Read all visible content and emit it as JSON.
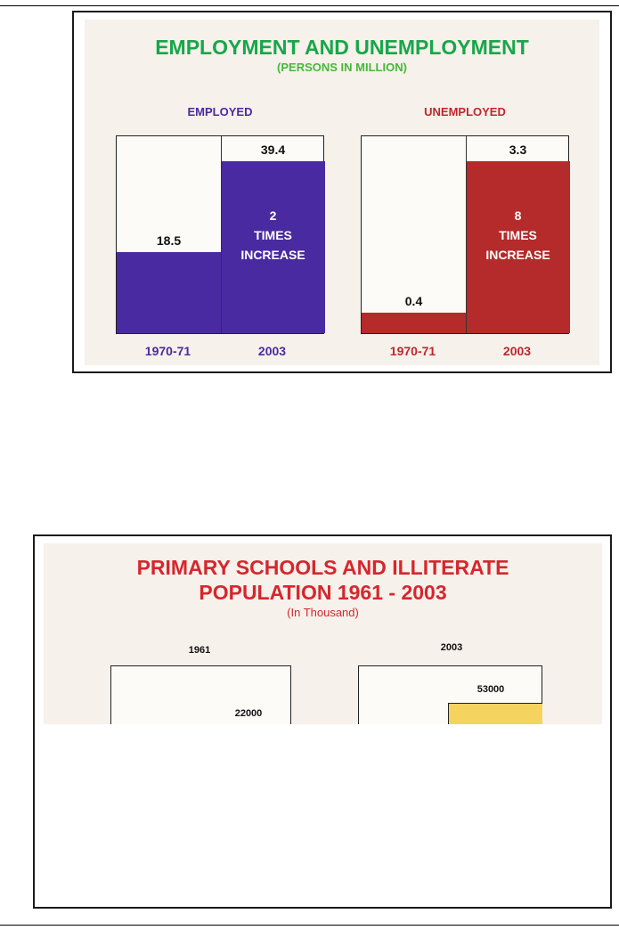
{
  "colors": {
    "title_green": "#18a64a",
    "subtitle_green": "#46b83c",
    "employed": "#4a2aa0",
    "unemployed": "#b52a2a",
    "schools_title": "#d6262e",
    "schools_bar": "#f4d35e"
  },
  "chart_data": [
    {
      "type": "bar",
      "title": "EMPLOYMENT AND UNEMPLOYMENT",
      "subtitle": "(PERSONS IN MILLION)",
      "groups": [
        {
          "name": "EMPLOYED",
          "categories": [
            "1970-71",
            "2003"
          ],
          "values": [
            18.5,
            39.4
          ],
          "value_labels": [
            "18.5",
            "39.4"
          ],
          "annotation": [
            "2",
            "TIMES",
            "INCREASE"
          ]
        },
        {
          "name": "UNEMPLOYED",
          "categories": [
            "1970-71",
            "2003"
          ],
          "values": [
            0.4,
            3.3
          ],
          "value_labels": [
            "0.4",
            "3.3"
          ],
          "annotation": [
            "8",
            "TIMES",
            "INCREASE"
          ]
        }
      ]
    },
    {
      "type": "bar",
      "title_lines": [
        "PRIMARY SCHOOLS AND ILLITERATE",
        "POPULATION 1961 - 2003"
      ],
      "subtitle": "(In Thousand)",
      "groups": [
        {
          "name": "1961",
          "value_labels": [
            "22000"
          ]
        },
        {
          "name": "2003",
          "value_labels": [
            "53000"
          ]
        }
      ]
    }
  ]
}
